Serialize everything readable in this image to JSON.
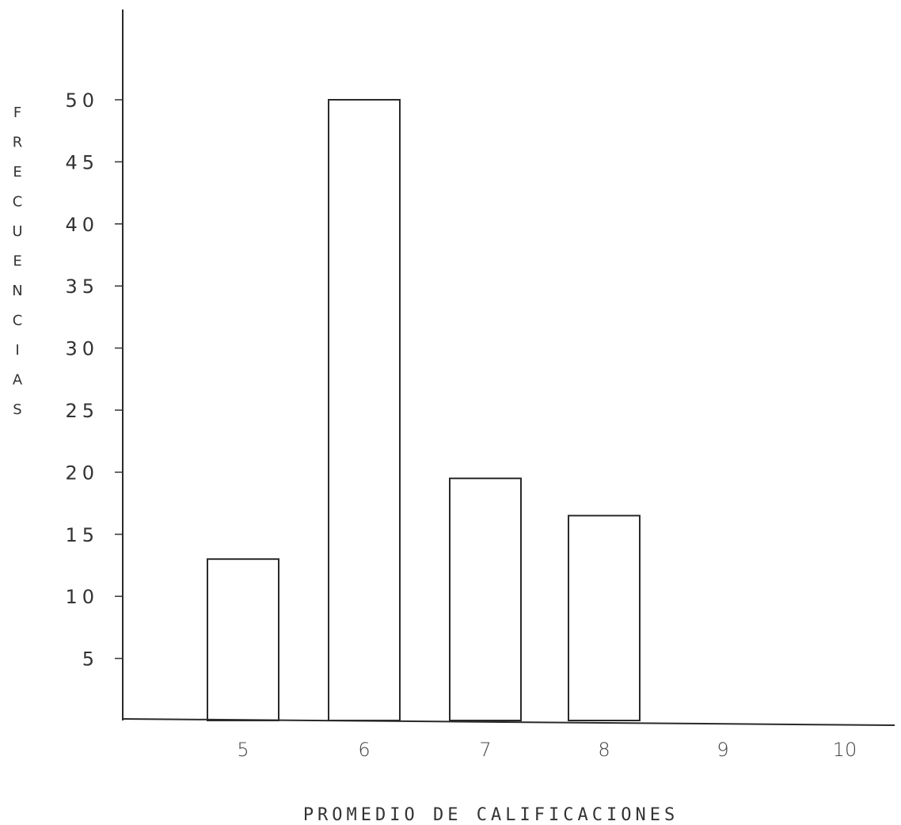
{
  "chart_data": {
    "type": "bar",
    "title": "",
    "xlabel": "PROMEDIO DE CALIFICACIONES",
    "ylabel": "FRECUENCIAS",
    "categories": [
      "5",
      "6",
      "7",
      "8",
      "9",
      "10"
    ],
    "values": [
      13,
      50,
      19.5,
      16.5,
      0,
      0
    ],
    "yticks": [
      "5",
      "10",
      "15",
      "20",
      "25",
      "30",
      "35",
      "40",
      "45",
      "50"
    ],
    "ylim": [
      0,
      50
    ],
    "grid": false,
    "legend": "none",
    "colors": {
      "axis": "#2a2a2a",
      "bar_fill": "#ffffff",
      "bar_stroke": "#2a2a2a"
    }
  }
}
